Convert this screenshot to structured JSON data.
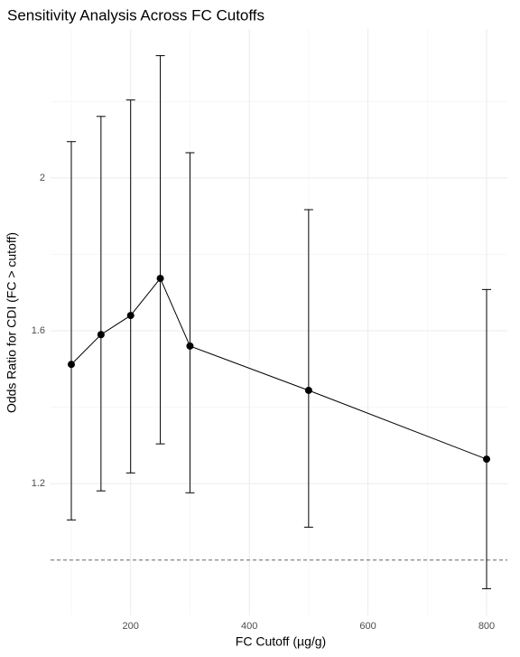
{
  "chart_data": {
    "type": "line",
    "title": "Sensitivity Analysis Across FC Cutoffs",
    "x_label": "FC Cutoff (µg/g)",
    "y_label": "Odds Ratio for CDI (FC > cutoff)",
    "x": [
      100,
      150,
      200,
      250,
      300,
      500,
      800
    ],
    "series": [
      {
        "name": "Odds Ratio",
        "color": "#000000",
        "values": [
          1.512,
          1.59,
          1.64,
          1.737,
          1.56,
          1.444,
          1.264
        ],
        "lower": [
          1.105,
          1.181,
          1.228,
          1.304,
          1.176,
          1.086,
          0.925
        ],
        "upper": [
          2.095,
          2.161,
          2.204,
          2.32,
          2.066,
          1.917,
          1.708
        ]
      }
    ],
    "reference_line": 1.0,
    "xlim": [
      65,
      835
    ],
    "xticks": [
      200,
      400,
      600,
      800
    ],
    "ylim": [
      0.855,
      2.39
    ],
    "yticks": [
      1.2,
      1.6,
      2.0
    ],
    "grid": true
  }
}
